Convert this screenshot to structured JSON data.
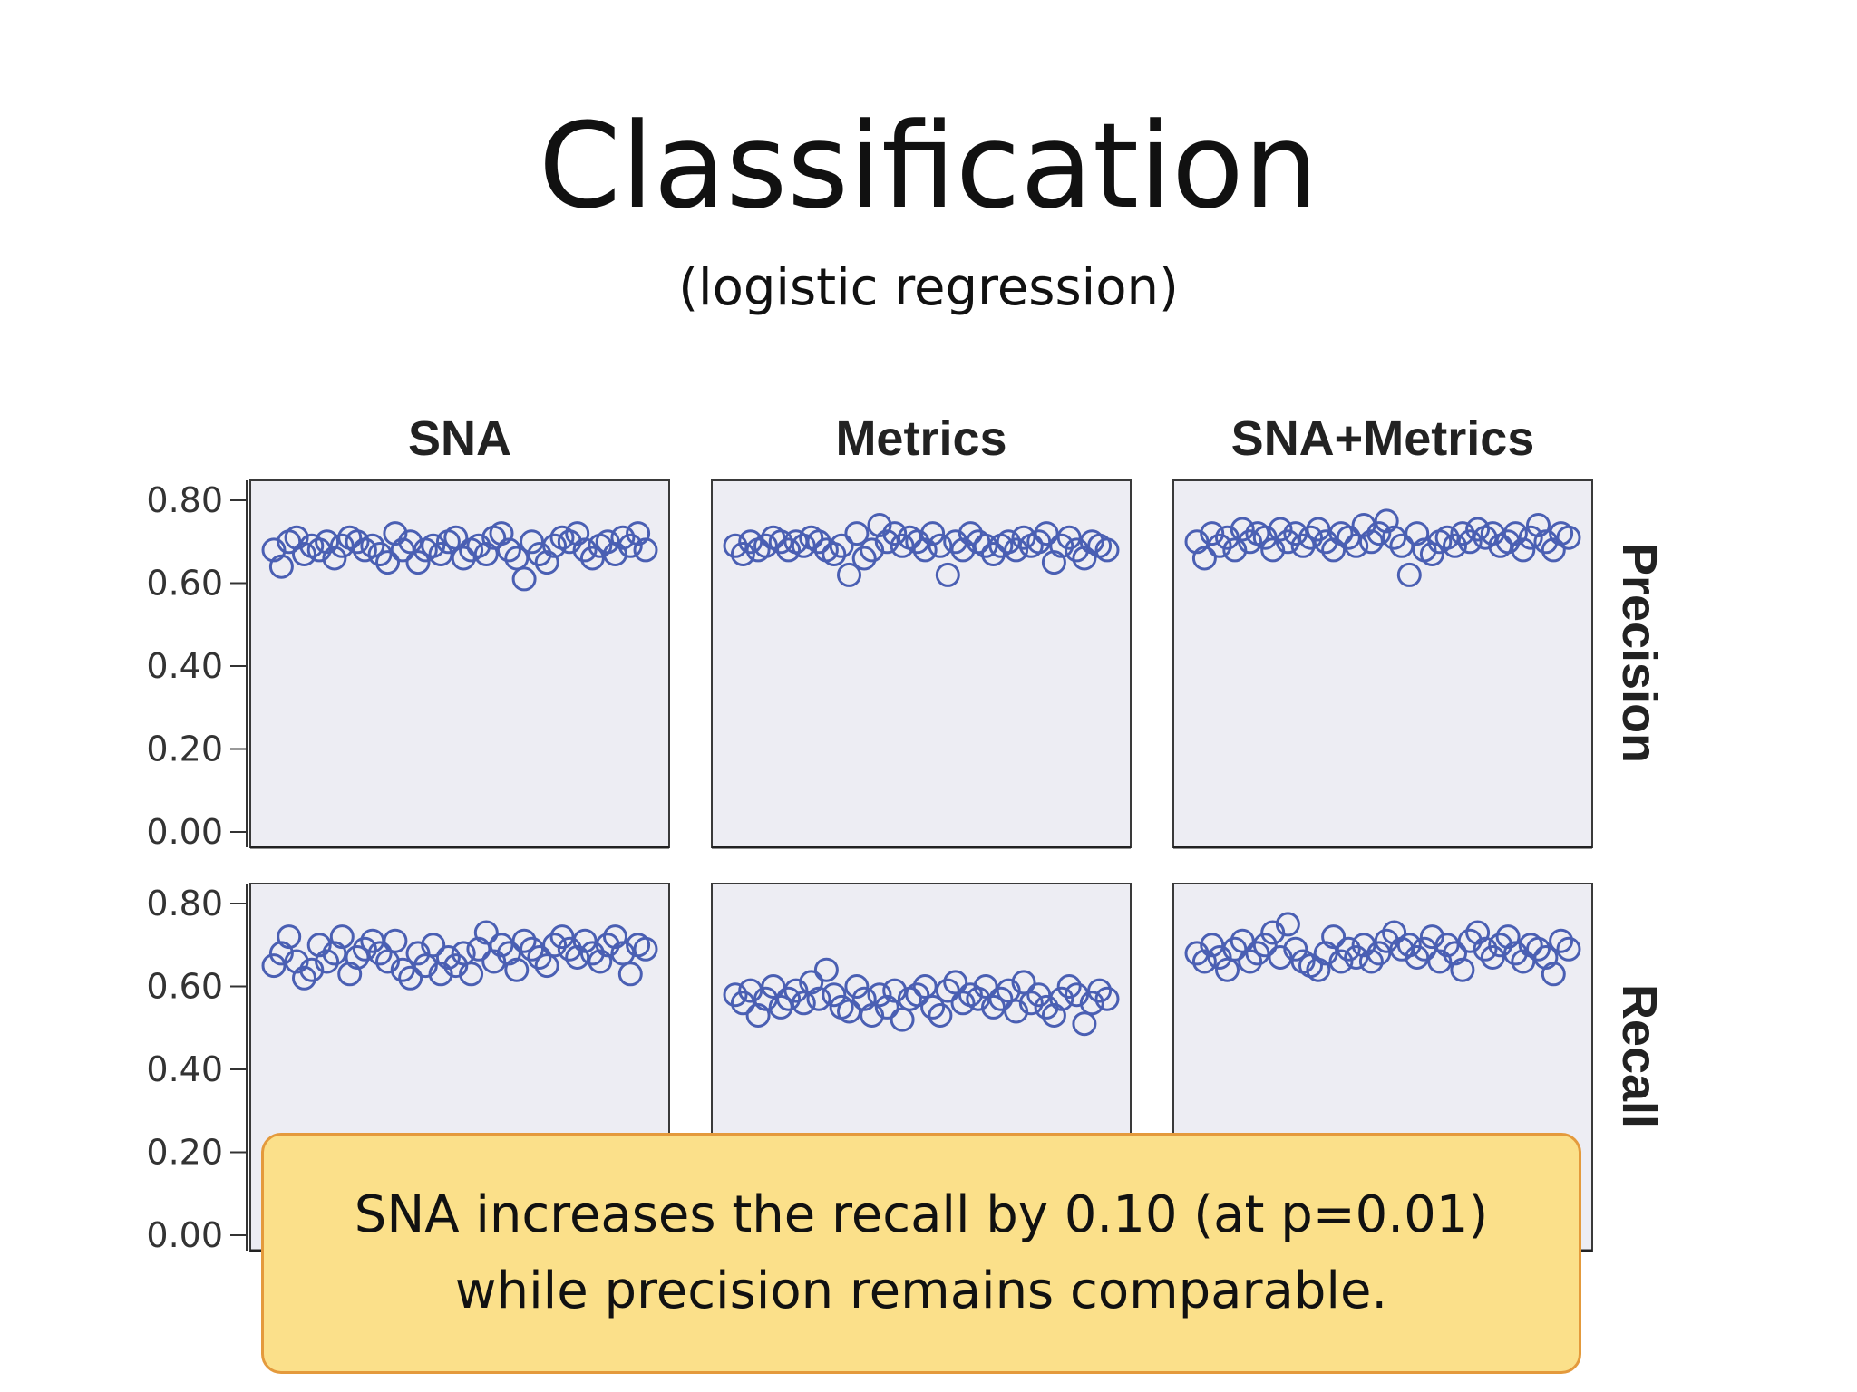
{
  "slide": {
    "title": "Classification",
    "subtitle": "(logistic regression)",
    "callout": {
      "line1": "SNA increases the recall by 0.10 (at p=0.01)",
      "line2": "while precision remains comparable."
    }
  },
  "colors": {
    "marker": "#4a5fb3",
    "panel_bg": "#ededf3",
    "callout_bg": "#fbe08a",
    "callout_border": "#e49a3c"
  },
  "chart_data": {
    "type": "scatter",
    "columns": [
      "SNA",
      "Metrics",
      "SNA+Metrics"
    ],
    "rows": [
      "Precision",
      "Recall"
    ],
    "y_ticks": [
      "0.80",
      "0.60",
      "0.40",
      "0.20",
      "0.00"
    ],
    "ylim": [
      0,
      0.8
    ],
    "grid": false,
    "marker": "open-circle",
    "panels": [
      {
        "row": "Precision",
        "column": "SNA",
        "y": [
          0.68,
          0.64,
          0.7,
          0.71,
          0.67,
          0.69,
          0.68,
          0.7,
          0.66,
          0.69,
          0.71,
          0.7,
          0.68,
          0.69,
          0.67,
          0.65,
          0.72,
          0.68,
          0.7,
          0.65,
          0.68,
          0.69,
          0.67,
          0.7,
          0.71,
          0.66,
          0.68,
          0.69,
          0.67,
          0.71,
          0.72,
          0.68,
          0.66,
          0.61,
          0.7,
          0.67,
          0.65,
          0.69,
          0.71,
          0.7,
          0.72,
          0.68,
          0.66,
          0.69,
          0.7,
          0.67,
          0.71,
          0.69,
          0.72,
          0.68
        ]
      },
      {
        "row": "Precision",
        "column": "Metrics",
        "y": [
          0.69,
          0.67,
          0.7,
          0.68,
          0.69,
          0.71,
          0.7,
          0.68,
          0.7,
          0.69,
          0.71,
          0.7,
          0.68,
          0.67,
          0.69,
          0.62,
          0.72,
          0.66,
          0.68,
          0.74,
          0.7,
          0.72,
          0.69,
          0.71,
          0.7,
          0.68,
          0.72,
          0.69,
          0.62,
          0.7,
          0.68,
          0.72,
          0.7,
          0.69,
          0.67,
          0.69,
          0.7,
          0.68,
          0.71,
          0.69,
          0.7,
          0.72,
          0.65,
          0.69,
          0.71,
          0.68,
          0.66,
          0.7,
          0.69,
          0.68
        ]
      },
      {
        "row": "Precision",
        "column": "SNA+Metrics",
        "y": [
          0.7,
          0.66,
          0.72,
          0.69,
          0.71,
          0.68,
          0.73,
          0.7,
          0.72,
          0.71,
          0.68,
          0.73,
          0.7,
          0.72,
          0.69,
          0.71,
          0.73,
          0.7,
          0.68,
          0.72,
          0.71,
          0.69,
          0.74,
          0.7,
          0.72,
          0.75,
          0.71,
          0.69,
          0.62,
          0.72,
          0.68,
          0.67,
          0.7,
          0.71,
          0.69,
          0.72,
          0.7,
          0.73,
          0.71,
          0.72,
          0.69,
          0.7,
          0.72,
          0.68,
          0.71,
          0.74,
          0.7,
          0.68,
          0.72,
          0.71
        ]
      },
      {
        "row": "Recall",
        "column": "SNA",
        "y": [
          0.65,
          0.68,
          0.72,
          0.66,
          0.62,
          0.64,
          0.7,
          0.66,
          0.68,
          0.72,
          0.63,
          0.67,
          0.69,
          0.71,
          0.68,
          0.66,
          0.71,
          0.64,
          0.62,
          0.68,
          0.65,
          0.7,
          0.63,
          0.67,
          0.65,
          0.68,
          0.63,
          0.69,
          0.73,
          0.66,
          0.7,
          0.68,
          0.64,
          0.71,
          0.69,
          0.67,
          0.65,
          0.7,
          0.72,
          0.69,
          0.67,
          0.71,
          0.68,
          0.66,
          0.7,
          0.72,
          0.68,
          0.63,
          0.7,
          0.69
        ]
      },
      {
        "row": "Recall",
        "column": "Metrics",
        "y": [
          0.58,
          0.56,
          0.59,
          0.53,
          0.57,
          0.6,
          0.55,
          0.57,
          0.59,
          0.56,
          0.61,
          0.57,
          0.64,
          0.58,
          0.55,
          0.54,
          0.6,
          0.57,
          0.53,
          0.58,
          0.55,
          0.59,
          0.52,
          0.57,
          0.58,
          0.6,
          0.55,
          0.53,
          0.59,
          0.61,
          0.56,
          0.58,
          0.57,
          0.6,
          0.55,
          0.57,
          0.59,
          0.54,
          0.61,
          0.56,
          0.58,
          0.55,
          0.53,
          0.57,
          0.6,
          0.58,
          0.51,
          0.56,
          0.59,
          0.57
        ]
      },
      {
        "row": "Recall",
        "column": "SNA+Metrics",
        "y": [
          0.68,
          0.66,
          0.7,
          0.67,
          0.64,
          0.69,
          0.71,
          0.66,
          0.68,
          0.7,
          0.73,
          0.67,
          0.75,
          0.69,
          0.66,
          0.65,
          0.64,
          0.68,
          0.72,
          0.66,
          0.69,
          0.67,
          0.7,
          0.66,
          0.68,
          0.71,
          0.73,
          0.69,
          0.7,
          0.67,
          0.69,
          0.72,
          0.66,
          0.7,
          0.68,
          0.64,
          0.71,
          0.73,
          0.69,
          0.67,
          0.7,
          0.72,
          0.68,
          0.66,
          0.7,
          0.69,
          0.67,
          0.63,
          0.71,
          0.69
        ]
      }
    ]
  }
}
